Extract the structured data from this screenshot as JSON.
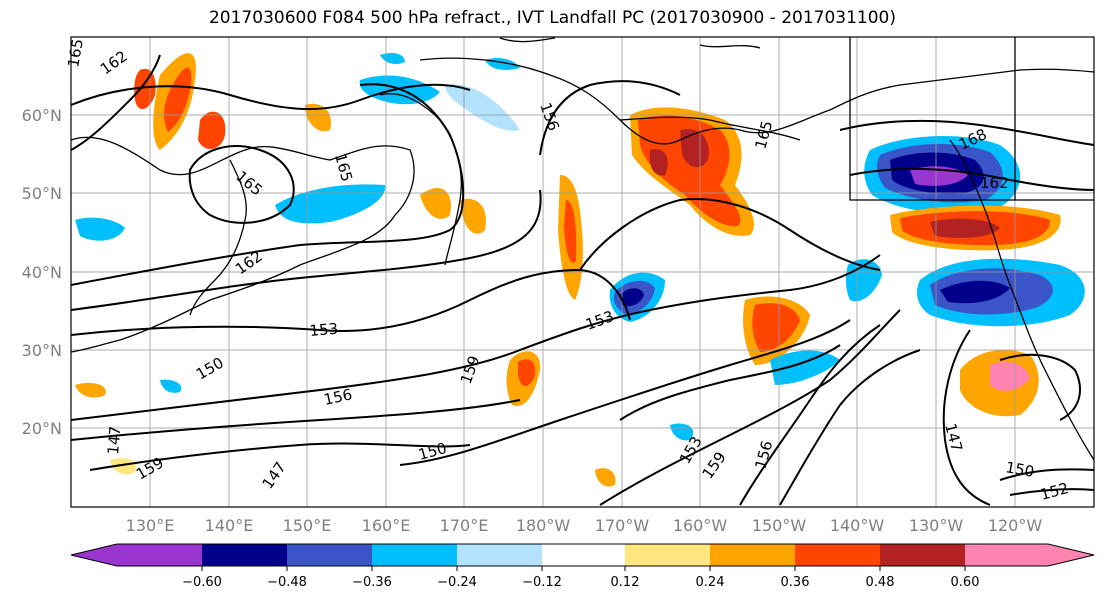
{
  "title": "2017030600 F084 500 hPa refract., IVT Landfall PC (2017030900 - 2017031100)",
  "map": {
    "lat_labels": [
      "60°N",
      "50°N",
      "40°N",
      "30°N",
      "20°N"
    ],
    "lon_labels": [
      "130°E",
      "140°E",
      "150°E",
      "160°E",
      "170°E",
      "180°W",
      "170°W",
      "160°W",
      "150°W",
      "140°W",
      "130°W",
      "120°W"
    ],
    "contour_labels": [
      "165",
      "162",
      "165",
      "165",
      "162",
      "156",
      "165",
      "168",
      "162",
      "153",
      "150",
      "156",
      "159",
      "150",
      "147",
      "159",
      "147",
      "153",
      "159",
      "156",
      "147",
      "150",
      "152",
      "156"
    ],
    "colors": {
      "neg_extreme": "#9a35d0",
      "neg_060": "#00008b",
      "neg_048": "#3a55c8",
      "neg_036": "#00bfff",
      "neg_024": "#b3e2ff",
      "neutral": "#ffffff",
      "pos_012": "#ffe680",
      "pos_024": "#ffa500",
      "pos_036": "#ff4500",
      "pos_048": "#b22222",
      "pos_extreme": "#ff85b0"
    }
  },
  "colorbar": {
    "ticks": [
      "−0.60",
      "−0.48",
      "−0.36",
      "−0.24",
      "−0.12",
      "0.12",
      "0.24",
      "0.36",
      "0.48",
      "0.60"
    ]
  }
}
